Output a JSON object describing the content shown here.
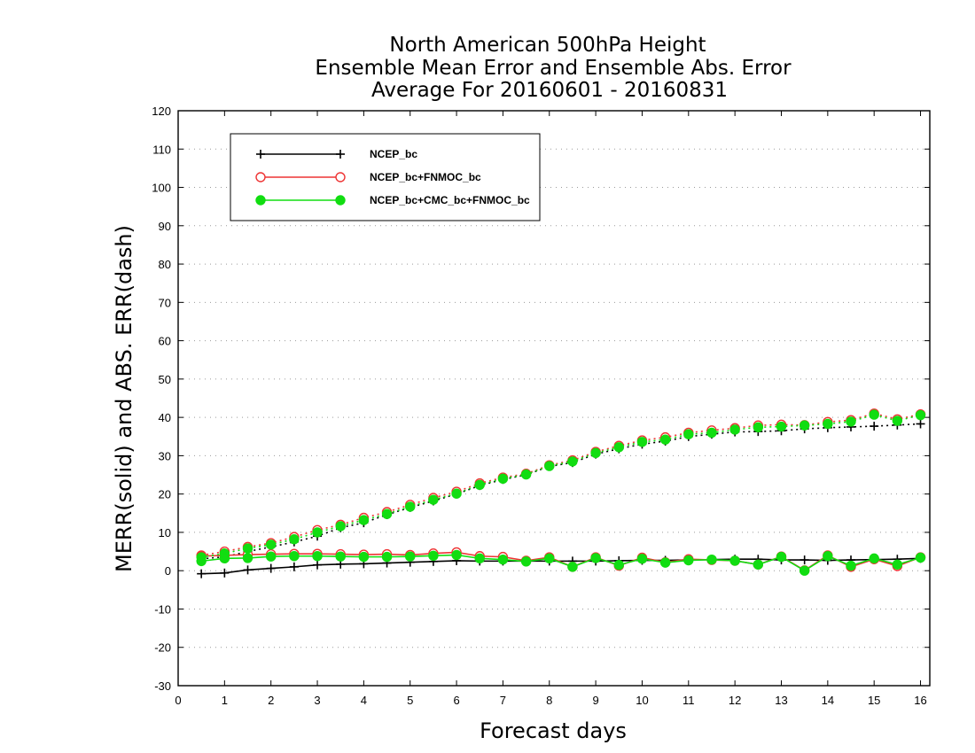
{
  "chart_data": {
    "type": "line",
    "title_lines": [
      "North American 500hPa Height",
      "Ensemble Mean Error and Ensemble Abs. Error",
      "Average For 20160601 - 20160831"
    ],
    "xlabel": "Forecast days",
    "ylabel": "MERR(solid) and ABS. ERR(dash)",
    "xlim": [
      0,
      16.2
    ],
    "ylim": [
      -30,
      120
    ],
    "xticks": [
      0,
      1,
      2,
      3,
      4,
      5,
      6,
      7,
      8,
      9,
      10,
      11,
      12,
      13,
      14,
      15,
      16
    ],
    "yticks": [
      -30,
      -20,
      -10,
      0,
      10,
      20,
      30,
      40,
      50,
      60,
      70,
      80,
      90,
      100,
      110,
      120
    ],
    "grid": "horizontal dotted",
    "legend_position": "top-left",
    "x": [
      0.5,
      1.0,
      1.5,
      2.0,
      2.5,
      3.0,
      3.5,
      4.0,
      4.5,
      5.0,
      5.5,
      6.0,
      6.5,
      7.0,
      7.5,
      8.0,
      8.5,
      9.0,
      9.5,
      10.0,
      10.5,
      11.0,
      11.5,
      12.0,
      12.5,
      13.0,
      13.5,
      14.0,
      14.5,
      15.0,
      15.5,
      16.0
    ],
    "series": [
      {
        "name": "NCEP_bc",
        "color": "#000000",
        "marker": "plus",
        "merr": [
          -0.8,
          -0.6,
          0.2,
          0.6,
          1.0,
          1.5,
          1.7,
          1.8,
          2.0,
          2.2,
          2.4,
          2.6,
          2.5,
          2.5,
          2.5,
          2.5,
          2.5,
          2.5,
          2.6,
          2.7,
          2.7,
          2.8,
          2.9,
          3.0,
          3.0,
          2.8,
          2.8,
          2.7,
          2.8,
          2.9,
          3.0,
          3.2
        ],
        "abs_err": [
          3.1,
          3.6,
          5.0,
          6.2,
          7.5,
          9.0,
          11.2,
          12.5,
          14.6,
          16.5,
          18.2,
          20.0,
          22.2,
          23.8,
          25.0,
          27.2,
          28.2,
          30.4,
          31.8,
          33.0,
          33.8,
          35.0,
          35.6,
          36.2,
          36.3,
          36.5,
          37.0,
          37.3,
          37.5,
          37.7,
          38.0,
          38.3
        ]
      },
      {
        "name": "NCEP_bc+FNMOC_bc",
        "color": "#ee3333",
        "marker": "open-circle",
        "merr": [
          3.8,
          4.0,
          4.2,
          4.3,
          4.4,
          4.4,
          4.3,
          4.2,
          4.3,
          4.1,
          4.5,
          4.8,
          3.8,
          3.6,
          2.6,
          3.5,
          1.0,
          3.5,
          1.3,
          3.4,
          2.2,
          3.0,
          2.8,
          2.6,
          1.6,
          3.7,
          0.1,
          4.0,
          1.0,
          3.0,
          1.2,
          3.5
        ],
        "abs_err": [
          4.0,
          5.0,
          6.2,
          7.2,
          8.8,
          10.6,
          12.0,
          13.8,
          15.3,
          17.2,
          19.0,
          20.6,
          22.8,
          24.3,
          25.3,
          27.5,
          28.8,
          31.0,
          32.6,
          34.0,
          34.8,
          36.0,
          36.6,
          37.2,
          37.9,
          38.1,
          38.0,
          38.8,
          39.3,
          41.0,
          39.5,
          40.8
        ]
      },
      {
        "name": "NCEP_bc+CMC_bc+FNMOC_bc",
        "color": "#11dd11",
        "marker": "filled-circle",
        "merr": [
          2.5,
          3.2,
          3.3,
          3.7,
          3.8,
          3.8,
          3.7,
          3.6,
          3.6,
          3.7,
          3.9,
          4.1,
          3.2,
          2.9,
          2.4,
          3.2,
          1.0,
          3.3,
          1.5,
          3.1,
          2.1,
          2.7,
          2.9,
          2.6,
          1.6,
          3.6,
          0.0,
          3.8,
          1.3,
          3.2,
          1.6,
          3.4
        ],
        "abs_err": [
          3.5,
          4.5,
          5.8,
          6.8,
          8.2,
          10.0,
          11.6,
          13.2,
          14.8,
          16.7,
          18.5,
          20.1,
          22.4,
          24.0,
          25.1,
          27.3,
          28.5,
          30.7,
          32.2,
          33.6,
          34.2,
          35.6,
          36.0,
          36.8,
          37.4,
          37.6,
          37.9,
          38.3,
          38.9,
          40.7,
          39.1,
          40.6
        ]
      }
    ],
    "legend": [
      {
        "label": "NCEP_bc"
      },
      {
        "label": "NCEP_bc+FNMOC_bc"
      },
      {
        "label": "NCEP_bc+CMC_bc+FNMOC_bc"
      }
    ]
  }
}
